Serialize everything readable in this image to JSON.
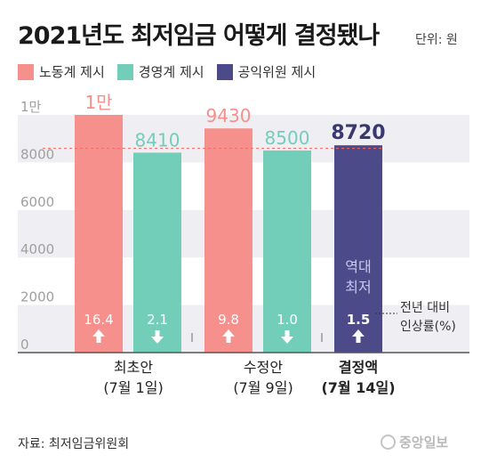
{
  "chart_data": {
    "type": "bar",
    "title": "2021년도 최저임금 어떻게 결정됐나",
    "unit_label": "단위: 원",
    "categories": [
      {
        "line1": "최초안",
        "line2": "(7월 1일)"
      },
      {
        "line1": "수정안",
        "line2": "(7월 9일)"
      },
      {
        "line1": "결정액",
        "line2": "(7월 14일)"
      }
    ],
    "series": [
      {
        "name": "노동계 제시",
        "color": "#f5908d"
      },
      {
        "name": "경영계 제시",
        "color": "#72cdb9"
      },
      {
        "name": "공익위원 제시",
        "color": "#4c4a88"
      }
    ],
    "bars": [
      {
        "series": 0,
        "group": 0,
        "value": 10000,
        "label": "1만",
        "change": "16.4",
        "direction": "up"
      },
      {
        "series": 1,
        "group": 0,
        "value": 8410,
        "label": "8410",
        "change": "2.1",
        "direction": "down"
      },
      {
        "series": 0,
        "group": 1,
        "value": 9430,
        "label": "9430",
        "change": "9.8",
        "direction": "up"
      },
      {
        "series": 1,
        "group": 1,
        "value": 8500,
        "label": "8500",
        "change": "1.0",
        "direction": "down"
      },
      {
        "series": 2,
        "group": 2,
        "value": 8720,
        "label": "8720",
        "change": "1.5",
        "direction": "up",
        "note": [
          "역대",
          "최저"
        ]
      }
    ],
    "y_ticks": [
      {
        "value": 0,
        "label": "0"
      },
      {
        "value": 2000,
        "label": "2000"
      },
      {
        "value": 4000,
        "label": "4000"
      },
      {
        "value": 6000,
        "label": "6000"
      },
      {
        "value": 8000,
        "label": "8000"
      },
      {
        "value": 10000,
        "label": "1만"
      }
    ],
    "ylim": [
      0,
      10000
    ],
    "reference_line": 8590,
    "callout": [
      "전년 대비",
      "인상률(%)"
    ]
  },
  "source": "자료: 최저임금위원회",
  "logo": "중앙일보"
}
